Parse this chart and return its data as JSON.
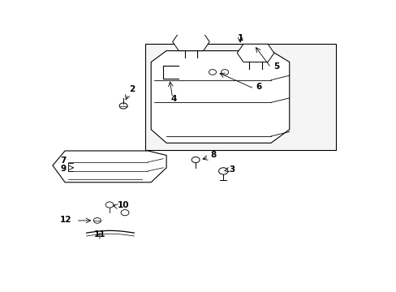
{
  "background_color": "#ffffff",
  "line_color": "#000000",
  "label_color": "#000000",
  "box_fill": "#f5f5f5"
}
